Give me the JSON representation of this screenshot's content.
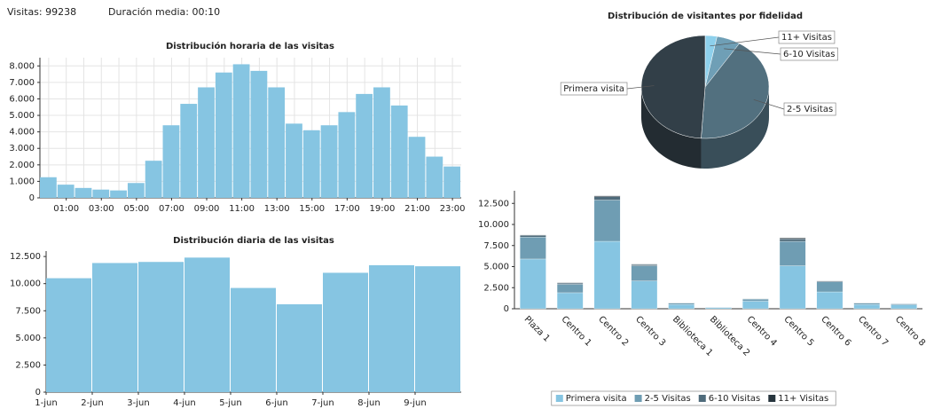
{
  "header": {
    "visits": "Visitas: 99238",
    "duration": "Duración media: 00:10"
  },
  "chart_data": [
    {
      "type": "bar",
      "title": "Distribución horaria de las visitas",
      "categories": [
        null,
        "01:00",
        null,
        "03:00",
        null,
        "05:00",
        null,
        "07:00",
        null,
        "09:00",
        null,
        "11:00",
        null,
        "13:00",
        null,
        "15:00",
        null,
        "17:00",
        null,
        "19:00",
        null,
        "21:00",
        null,
        "23:00"
      ],
      "values": [
        1250,
        800,
        600,
        500,
        450,
        900,
        2250,
        4400,
        5700,
        6700,
        7600,
        8100,
        7700,
        6700,
        4500,
        4100,
        4400,
        5200,
        6300,
        6700,
        5600,
        3700,
        2500,
        1900
      ],
      "color": "#86c5e2",
      "ylim": [
        0,
        8500
      ],
      "yticks": [
        0,
        {
          "value": 1000,
          "label": "1.000"
        },
        {
          "value": 2000,
          "label": "2.000"
        },
        {
          "value": 3000,
          "label": "3.000"
        },
        {
          "value": 4000,
          "label": "4.000"
        },
        {
          "value": 5000,
          "label": "5.000"
        },
        {
          "value": 6000,
          "label": "6.000"
        },
        {
          "value": 7000,
          "label": "7.000"
        },
        {
          "value": 8000,
          "label": "8.000"
        }
      ],
      "grid": true
    },
    {
      "type": "bar",
      "title": "Distribución diaria de las visitas",
      "categories": [
        "1-jun",
        "2-jun",
        "3-jun",
        "4-jun",
        "5-jun",
        "6-jun",
        "7-jun",
        "8-jun",
        "9-jun"
      ],
      "values": [
        10500,
        11900,
        12000,
        12400,
        9600,
        8100,
        11000,
        11700,
        11600
      ],
      "color": "#86c5e2",
      "ylim": [
        0,
        13000
      ],
      "yticks": [
        0,
        {
          "value": 2500,
          "label": "2.500"
        },
        {
          "value": 5000,
          "label": "5.000"
        },
        {
          "value": 7500,
          "label": "7.500"
        },
        {
          "value": 10000,
          "label": "10.000"
        },
        {
          "value": 12500,
          "label": "12.500"
        }
      ],
      "grid": false
    },
    {
      "type": "pie",
      "title": "Distribución de visitantes por fidelidad",
      "categories": [
        "11+ Visitas",
        "6-10 Visitas",
        "2-5 Visitas",
        "Primera visita"
      ],
      "values": [
        3,
        6,
        42,
        49
      ],
      "colors": [
        "#8dd0ec",
        "#6f9fb6",
        "#52707f",
        "#323f48"
      ]
    },
    {
      "type": "stacked_bar",
      "categories": [
        "Plaza 1",
        "Centro 1",
        "Centro 2",
        "Centro 3",
        "Biblioteca 1",
        "Biblioteca 2",
        "Centro 4",
        "Centro 5",
        "Centro 6",
        "Centro 7",
        "Centro 8"
      ],
      "series": [
        {
          "name": "Primera visita",
          "color": "#86c5e2",
          "values": [
            5900,
            1900,
            8000,
            3300,
            500,
            150,
            900,
            5100,
            2000,
            500,
            450
          ]
        },
        {
          "name": "2-5 Visitas",
          "color": "#6f9db3",
          "values": [
            2600,
            1000,
            4900,
            1800,
            170,
            40,
            250,
            2900,
            1200,
            170,
            130
          ]
        },
        {
          "name": "6-10 Visitas",
          "color": "#4f6b7b",
          "values": [
            200,
            150,
            400,
            150,
            20,
            10,
            40,
            300,
            80,
            20,
            15
          ]
        },
        {
          "name": "11+ Visitas",
          "color": "#26343d",
          "values": [
            50,
            50,
            100,
            50,
            10,
            0,
            10,
            100,
            20,
            10,
            5
          ]
        }
      ],
      "ylim": [
        0,
        14000
      ],
      "yticks": [
        0,
        {
          "value": 2500,
          "label": "2.500"
        },
        {
          "value": 5000,
          "label": "5.000"
        },
        {
          "value": 7500,
          "label": "7.500"
        },
        {
          "value": 10000,
          "label": "10.000"
        },
        {
          "value": 12500,
          "label": "12.500"
        }
      ],
      "legend": "bottom"
    }
  ]
}
